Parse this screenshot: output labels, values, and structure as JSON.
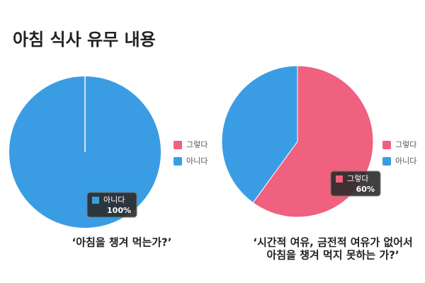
{
  "title": "아침 식사 유무 내용",
  "chart_data": [
    {
      "type": "pie",
      "categories": [
        "그렇다",
        "아니다"
      ],
      "values": [
        0,
        100
      ],
      "value_labels": [
        null,
        "100%"
      ],
      "colors": [
        "#f0607f",
        "#3a9de4"
      ],
      "tooltip_category": 1,
      "caption": [
        "‘아침을 챙겨 먹는가?’"
      ]
    },
    {
      "type": "pie",
      "categories": [
        "그렇다",
        "아니다"
      ],
      "values": [
        60,
        40
      ],
      "value_labels": [
        "60%",
        null
      ],
      "colors": [
        "#f0607f",
        "#3a9de4"
      ],
      "tooltip_category": 0,
      "caption": [
        "‘시간적 여유, 금전적 여유가 없어서",
        "아침을 챙겨 먹지 못하는 가?’"
      ]
    }
  ]
}
